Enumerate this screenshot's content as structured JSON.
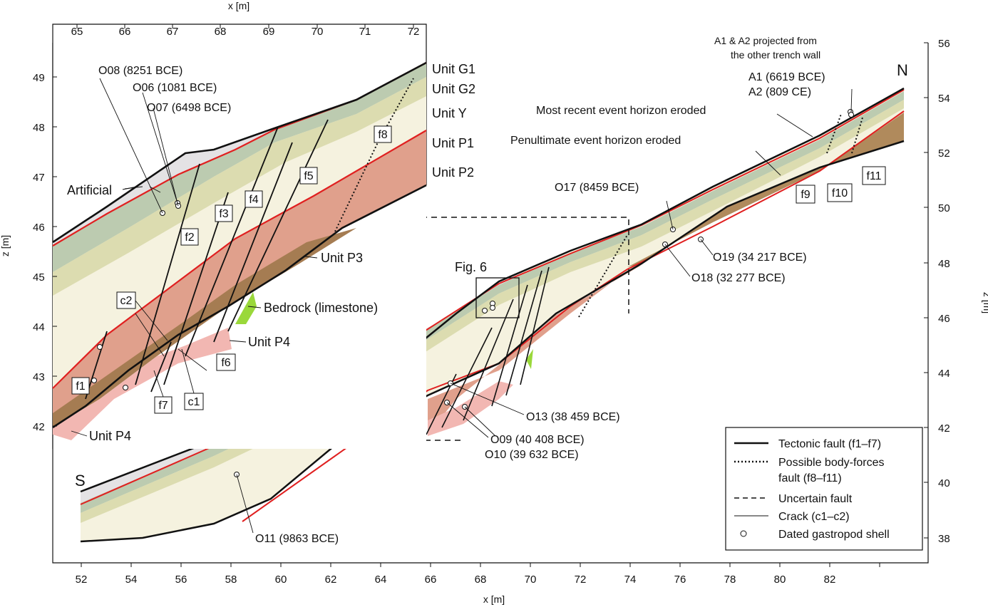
{
  "main": {
    "x_axis_label": "x [m]",
    "z_axis_label": "z [m]",
    "x_ticks": [
      "52",
      "54",
      "56",
      "58",
      "60",
      "62",
      "64",
      "66",
      "68",
      "70",
      "72",
      "74",
      "76",
      "78",
      "80",
      "82"
    ],
    "z_ticks": [
      "38",
      "40",
      "42",
      "44",
      "46",
      "48",
      "50",
      "52",
      "54",
      "56"
    ],
    "south_label": "S",
    "north_label": "N",
    "labels": {
      "most_recent": "Most recent event horizon eroded",
      "penultimate": "Penultimate event horizon eroded",
      "proj1": "A1 & A2 projected from",
      "proj2": "the other trench wall",
      "a1": "A1 (6619 BCE)",
      "a2": "A2 (809 CE)",
      "o17": "O17 (8459 BCE)",
      "o19": "O19 (34 217 BCE)",
      "o18": "O18 (32 277 BCE)",
      "o13": "O13 (38 459 BCE)",
      "o09": "O09 (40 408 BCE)",
      "o10": "O10 (39 632 BCE)",
      "o11": "O11 (9863 BCE)",
      "fig6": "Fig. 6",
      "f9": "f9",
      "f10": "f10",
      "f11": "f11"
    }
  },
  "inset": {
    "x_axis_label": "x [m]",
    "z_axis_label": "z [m]",
    "x_ticks": [
      "65",
      "66",
      "67",
      "68",
      "69",
      "70",
      "71",
      "72"
    ],
    "z_ticks": [
      "42",
      "43",
      "44",
      "45",
      "46",
      "47",
      "48",
      "49"
    ],
    "units": {
      "g1": "Unit G1",
      "g2": "Unit G2",
      "y": "Unit Y",
      "p1": "Unit P1",
      "p2": "Unit P2",
      "p3": "Unit P3",
      "p4a": "Unit P4",
      "p4b": "Unit P4",
      "bedrock": "Bedrock (limestone)",
      "artificial": "Artificial"
    },
    "samples": {
      "o08": "O08 (8251 BCE)",
      "o06": "O06 (1081 BCE)",
      "o07": "O07 (6498 BCE)"
    },
    "faults": [
      "f1",
      "f2",
      "f3",
      "f4",
      "f5",
      "f6",
      "f7",
      "f8",
      "c1",
      "c2"
    ]
  },
  "legend": {
    "items": [
      "Tectonic fault (f1–f7)",
      "Possible body-forces",
      "fault (f8–f11)",
      "Uncertain fault",
      "Crack (c1–c2)",
      "Dated gastropod shell"
    ]
  },
  "colors": {
    "artificial": "#e4e2e4",
    "unit_g1": "#bccbb0",
    "unit_g2": "#dcdcb0",
    "unit_y": "#f5f2df",
    "unit_p1": "#b08a5c",
    "unit_p2": "#e0a08c",
    "unit_p4": "#f2b7b2",
    "bedrock": "#9ad83a",
    "event_horizon": "#e02020"
  }
}
